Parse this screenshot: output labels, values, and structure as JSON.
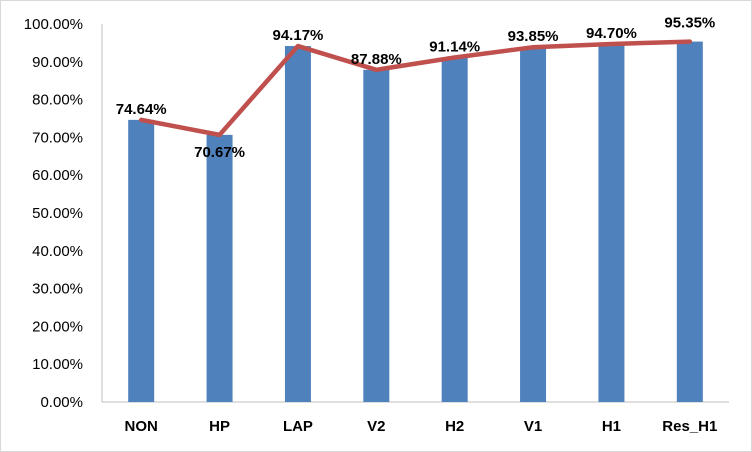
{
  "chart_data": {
    "type": "bar",
    "categories": [
      "NON",
      "HP",
      "LAP",
      "V2",
      "H2",
      "V1",
      "H1",
      "Res_H1"
    ],
    "values": [
      74.64,
      70.67,
      94.17,
      87.88,
      91.14,
      93.85,
      94.7,
      95.35
    ],
    "data_labels": [
      "74.64%",
      "70.67%",
      "94.17%",
      "87.88%",
      "91.14%",
      "93.85%",
      "94.70%",
      "95.35%"
    ],
    "overlay_line": {
      "type": "line",
      "values": [
        74.64,
        70.67,
        94.17,
        87.88,
        91.14,
        93.85,
        94.7,
        95.35
      ]
    },
    "y_ticks": [
      "0.00%",
      "10.00%",
      "20.00%",
      "30.00%",
      "40.00%",
      "50.00%",
      "60.00%",
      "70.00%",
      "80.00%",
      "90.00%",
      "100.00%"
    ],
    "ylim": [
      0,
      100
    ],
    "grid": false,
    "legend": "none",
    "title": "",
    "xlabel": "",
    "ylabel": "",
    "colors": {
      "bar": "#4F81BD",
      "line": "#C0504D",
      "axis": "#bfbfbf"
    }
  }
}
